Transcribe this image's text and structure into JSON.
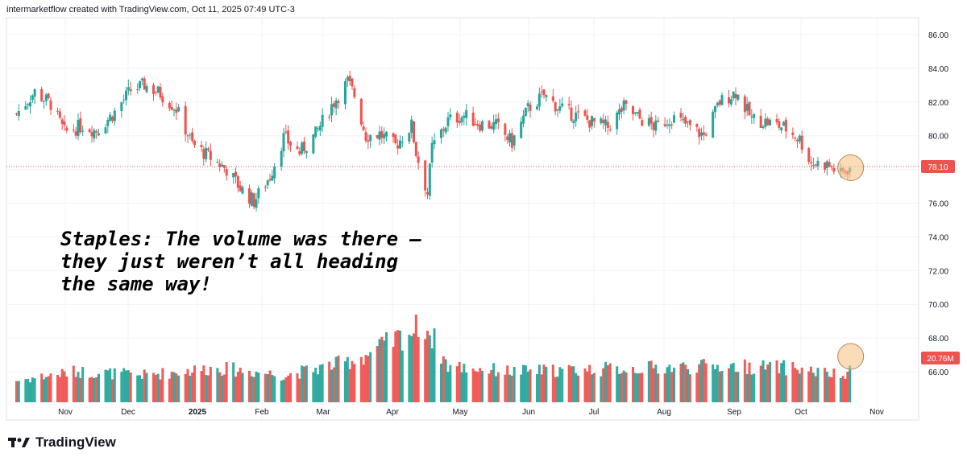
{
  "header": {
    "text": "intermarketflow created with TradingView.com, Oct 11, 2025 07:49 UTC-3"
  },
  "annotation": {
    "text": "Staples: The volume was there — they just weren’t all heading the same way!"
  },
  "brand": {
    "text": "TradingView",
    "icon": "tradingview-logo-icon"
  },
  "colors": {
    "up": "#26a69a",
    "down": "#ef5350",
    "highlight": "#f7c48a",
    "grid": "#f0f3fa"
  },
  "chart_data": {
    "type": "candlestick",
    "title": "",
    "ylim": [
      64,
      87
    ],
    "y_ticks": [
      "86.00",
      "84.00",
      "82.00",
      "80.00",
      "78.00",
      "76.00",
      "74.00",
      "72.00",
      "70.00",
      "68.00",
      "66.00"
    ],
    "x_ticks": [
      "Nov",
      "Dec",
      "2025",
      "Feb",
      "Mar",
      "Apr",
      "May",
      "Jun",
      "Jul",
      "Aug",
      "Sep",
      "Oct",
      "Nov"
    ],
    "last_price": "78.10",
    "last_volume": "20.76M",
    "series": [
      {
        "name": "",
        "type": "price_path",
        "points": [
          [
            "2024-10-10",
            81.3
          ],
          [
            "2024-10-18",
            82.6
          ],
          [
            "2024-10-25",
            81.9
          ],
          [
            "2024-10-31",
            80.2
          ],
          [
            "2024-11-08",
            80.6
          ],
          [
            "2024-11-14",
            80.3
          ],
          [
            "2024-11-22",
            81.4
          ],
          [
            "2024-11-29",
            82.7
          ],
          [
            "2024-12-05",
            83.0
          ],
          [
            "2024-12-12",
            82.5
          ],
          [
            "2024-12-19",
            81.6
          ],
          [
            "2024-12-26",
            79.5
          ],
          [
            "2025-01-03",
            78.7
          ],
          [
            "2025-01-10",
            78.0
          ],
          [
            "2025-01-16",
            76.9
          ],
          [
            "2025-01-22",
            76.1
          ],
          [
            "2025-01-29",
            77.6
          ],
          [
            "2025-02-04",
            79.9
          ],
          [
            "2025-02-11",
            79.0
          ],
          [
            "2025-02-18",
            80.1
          ],
          [
            "2025-02-25",
            81.8
          ],
          [
            "2025-03-04",
            83.2
          ],
          [
            "2025-03-07",
            82.4
          ],
          [
            "2025-03-12",
            80.0
          ],
          [
            "2025-03-18",
            80.1
          ],
          [
            "2025-03-25",
            79.4
          ],
          [
            "2025-04-01",
            80.6
          ],
          [
            "2025-04-03",
            79.0
          ],
          [
            "2025-04-08",
            76.6
          ],
          [
            "2025-04-10",
            79.3
          ],
          [
            "2025-04-17",
            80.9
          ],
          [
            "2025-04-24",
            81.2
          ],
          [
            "2025-05-01",
            80.7
          ],
          [
            "2025-05-08",
            80.6
          ],
          [
            "2025-05-15",
            79.6
          ],
          [
            "2025-05-22",
            81.6
          ],
          [
            "2025-05-29",
            82.4
          ],
          [
            "2025-06-05",
            81.6
          ],
          [
            "2025-06-12",
            81.2
          ],
          [
            "2025-06-19",
            80.8
          ],
          [
            "2025-06-26",
            80.5
          ],
          [
            "2025-07-03",
            81.7
          ],
          [
            "2025-07-10",
            81.0
          ],
          [
            "2025-07-17",
            80.5
          ],
          [
            "2025-07-24",
            81.1
          ],
          [
            "2025-07-31",
            80.6
          ],
          [
            "2025-08-07",
            80.0
          ],
          [
            "2025-08-14",
            82.0
          ],
          [
            "2025-08-21",
            82.6
          ],
          [
            "2025-08-28",
            81.0
          ],
          [
            "2025-09-04",
            80.8
          ],
          [
            "2025-09-11",
            80.5
          ],
          [
            "2025-09-18",
            79.8
          ],
          [
            "2025-09-23",
            78.4
          ],
          [
            "2025-09-30",
            78.3
          ],
          [
            "2025-10-06",
            77.7
          ],
          [
            "2025-10-10",
            78.1
          ]
        ]
      },
      {
        "name": "",
        "type": "volume_path",
        "unit": "M",
        "points": [
          [
            "2024-10-10",
            12
          ],
          [
            "2024-11-05",
            17
          ],
          [
            "2024-12-05",
            15
          ],
          [
            "2025-01-06",
            19
          ],
          [
            "2025-02-05",
            15
          ],
          [
            "2025-03-03",
            22
          ],
          [
            "2025-03-12",
            26
          ],
          [
            "2025-04-07",
            43
          ],
          [
            "2025-04-17",
            20
          ],
          [
            "2025-05-15",
            17
          ],
          [
            "2025-06-15",
            18
          ],
          [
            "2025-07-15",
            19
          ],
          [
            "2025-08-15",
            20
          ],
          [
            "2025-09-15",
            19
          ],
          [
            "2025-10-09",
            14
          ],
          [
            "2025-10-10",
            20.76
          ]
        ]
      }
    ]
  }
}
